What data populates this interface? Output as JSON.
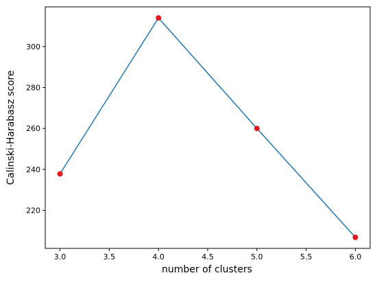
{
  "chart_data": {
    "type": "line",
    "x_label": "number of clusters",
    "y_label": "Calinski-Harabasz score",
    "x": [
      3,
      4,
      5,
      6
    ],
    "series": [
      {
        "color": "#1f77b4",
        "marker_color": "#e31a1c",
        "values": [
          237.8,
          314,
          260,
          206.8
        ]
      }
    ],
    "xlim": [
      2.85,
      6.15
    ],
    "ylim": [
      201.4,
      319.4
    ],
    "xticks": [
      {
        "value": 3,
        "label": "3.0"
      },
      {
        "value": 3.5,
        "label": "3.5"
      },
      {
        "value": 4,
        "label": "4.0"
      },
      {
        "value": 4.5,
        "label": "4.5"
      },
      {
        "value": 5,
        "label": "5.0"
      },
      {
        "value": 5.5,
        "label": "5.5"
      },
      {
        "value": 6,
        "label": "6.0"
      }
    ],
    "yticks": [
      220,
      240,
      260,
      280,
      300
    ]
  }
}
